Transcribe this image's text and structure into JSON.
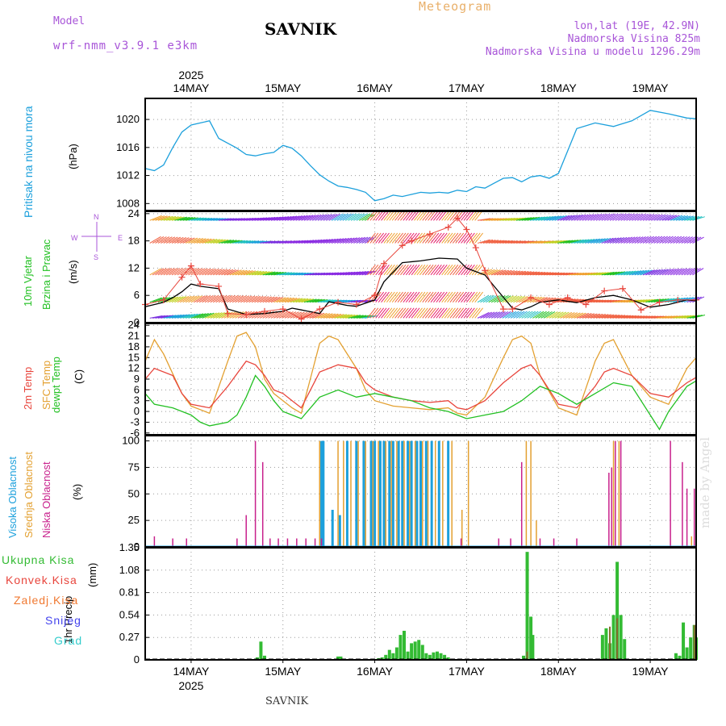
{
  "header": {
    "model_label": "Model",
    "model_name": "wrf-nmm_v3.9.1 e3km",
    "station": "SAVNIK",
    "product": "Meteogram",
    "coords": "lon,lat (19E, 42.9N)",
    "elevation": "Nadmorska Visina 825m",
    "model_elevation": "Nadmorska Visina u modelu 1296.29m",
    "watermark": "made by Angel",
    "footer_station": "SAVNIK"
  },
  "time_axis": {
    "year": "2025",
    "days": [
      "14MAY",
      "15MAY",
      "16MAY",
      "17MAY",
      "18MAY",
      "19MAY"
    ],
    "range_days": [
      -0.5,
      5.5
    ]
  },
  "colors": {
    "pressure": "#1ca0dc",
    "wind_speed": "#000000",
    "gust": "#e8453c",
    "temp2m": "#e8453c",
    "sfc": "#e3a030",
    "dewpt": "#22c022",
    "cloud_high": "#1ca0dc",
    "cloud_mid": "#e3a030",
    "cloud_low": "#c8208c",
    "precip_total": "#33bb33",
    "precip_conv": "#e8453c",
    "precip_frozen": "#f07830",
    "snow": "#4444ee",
    "graupel": "#33cccc",
    "wind_dir": "#a855d8"
  },
  "chart_data": [
    {
      "type": "line",
      "name": "pressure",
      "ylabel_name": "Pritisak na nivou mora",
      "ylabel_unit": "(hPa)",
      "ylim": [
        1007,
        1023
      ],
      "yticks": [
        1008,
        1012,
        1016,
        1020
      ],
      "series": [
        {
          "name": "MSLP",
          "x": [
            -0.5,
            -0.4,
            -0.3,
            -0.2,
            -0.1,
            0.0,
            0.1,
            0.2,
            0.3,
            0.4,
            0.5,
            0.6,
            0.7,
            0.8,
            0.9,
            1.0,
            1.1,
            1.2,
            1.3,
            1.4,
            1.5,
            1.6,
            1.7,
            1.8,
            1.9,
            2.0,
            2.1,
            2.2,
            2.3,
            2.4,
            2.5,
            2.6,
            2.7,
            2.8,
            2.9,
            3.0,
            3.1,
            3.2,
            3.3,
            3.4,
            3.5,
            3.6,
            3.7,
            3.8,
            3.9,
            4.0,
            4.2,
            4.4,
            4.6,
            4.8,
            5.0,
            5.2,
            5.4,
            5.5
          ],
          "values": [
            1013,
            1012.7,
            1013.5,
            1016,
            1018.2,
            1019.2,
            1019.5,
            1019.8,
            1017.3,
            1016.6,
            1015.9,
            1015,
            1014.8,
            1015.1,
            1015.3,
            1016.3,
            1015.9,
            1014.8,
            1013.4,
            1012.1,
            1011.2,
            1010.5,
            1010.3,
            1010.0,
            1009.6,
            1008.4,
            1008.7,
            1009.2,
            1009.0,
            1009.3,
            1009.6,
            1009.5,
            1009.6,
            1009.5,
            1009.9,
            1009.7,
            1010.4,
            1010.2,
            1010.9,
            1011.6,
            1011.7,
            1011.1,
            1011.8,
            1012.0,
            1011.6,
            1012.3,
            1018.7,
            1019.5,
            1019.0,
            1019.8,
            1021.3,
            1020.8,
            1020.2,
            1020.1
          ]
        }
      ]
    },
    {
      "type": "line",
      "name": "wind",
      "ylabel_name": "10m Vjetar",
      "ylabel_name2": "Brzina i Pravac",
      "ylabel_unit": "(m/s)",
      "legend_compass": [
        "W",
        "E",
        "N",
        "S"
      ],
      "ylim": [
        0,
        24.5
      ],
      "yticks": [
        0,
        6,
        12,
        18,
        24
      ],
      "series": [
        {
          "name": "speed",
          "x": [
            -0.5,
            -0.3,
            -0.2,
            -0.1,
            0.0,
            0.1,
            0.3,
            0.4,
            0.6,
            0.8,
            1.0,
            1.1,
            1.2,
            1.4,
            1.5,
            1.6,
            1.7,
            1.8,
            2.0,
            2.1,
            2.3,
            2.5,
            2.7,
            2.9,
            3.0,
            3.2,
            3.3,
            3.5,
            3.6,
            3.7,
            3.8,
            4.0,
            4.2,
            4.4,
            4.6,
            4.8,
            5.0,
            5.2,
            5.4,
            5.5
          ],
          "values": [
            3.5,
            4.5,
            5.5,
            6.8,
            8.5,
            8.0,
            7.5,
            3.0,
            1.8,
            2.0,
            2.5,
            3.2,
            2.8,
            2.0,
            4.6,
            4.2,
            3.8,
            3.6,
            5.0,
            9.0,
            13.2,
            13.6,
            14.2,
            14.0,
            12.0,
            10.5,
            8.0,
            3.2,
            2.8,
            3.5,
            4.5,
            5.0,
            4.4,
            5.5,
            6.0,
            5.0,
            3.4,
            4.0,
            5.0,
            4.8
          ]
        },
        {
          "name": "gust",
          "x": [
            -0.5,
            -0.3,
            -0.1,
            0.0,
            0.1,
            0.3,
            0.4,
            0.6,
            0.8,
            1.0,
            1.2,
            1.4,
            1.6,
            1.8,
            2.0,
            2.1,
            2.3,
            2.4,
            2.6,
            2.8,
            2.9,
            3.0,
            3.1,
            3.2,
            3.4,
            3.5,
            3.7,
            3.9,
            4.1,
            4.3,
            4.5,
            4.7,
            4.9,
            5.1,
            5.3,
            5.5
          ],
          "values": [
            4.0,
            5.0,
            10.0,
            12.5,
            8.5,
            8.0,
            2.0,
            1.8,
            2.5,
            3.0,
            0.8,
            3.0,
            4.5,
            4.0,
            6.0,
            13.0,
            17.0,
            18.0,
            19.5,
            21.0,
            23.0,
            20.5,
            16.5,
            11.5,
            3.0,
            3.0,
            5.5,
            4.0,
            5.5,
            4.0,
            7.0,
            7.5,
            2.8,
            4.5,
            5.0,
            5.0
          ]
        },
        {
          "name": "direction",
          "x": [],
          "values": []
        }
      ]
    },
    {
      "type": "line",
      "name": "temperature",
      "ylabel_name": "2m Temp",
      "ylabel_name2": "SFC Temp",
      "ylabel_name3": "dewpt Temp",
      "ylabel_unit": "(C)",
      "ylim": [
        -6.5,
        24.5
      ],
      "yticks": [
        -6,
        -3,
        0,
        3,
        6,
        9,
        12,
        15,
        18,
        21,
        24
      ],
      "series": [
        {
          "name": "2m Temp",
          "x": [
            -0.5,
            -0.4,
            -0.2,
            -0.1,
            0.0,
            0.1,
            0.2,
            0.4,
            0.6,
            0.7,
            0.8,
            0.9,
            1.0,
            1.1,
            1.2,
            1.4,
            1.6,
            1.8,
            1.9,
            2.0,
            2.2,
            2.4,
            2.6,
            2.8,
            2.9,
            3.0,
            3.2,
            3.4,
            3.6,
            3.7,
            3.8,
            4.0,
            4.2,
            4.4,
            4.5,
            4.6,
            4.8,
            5.0,
            5.2,
            5.4,
            5.5
          ],
          "values": [
            9,
            12,
            10,
            5,
            2,
            1.5,
            1,
            7,
            14,
            13,
            10,
            6,
            5,
            3,
            1,
            11,
            13,
            12,
            8,
            6,
            4,
            3,
            2.5,
            3,
            1,
            0.5,
            3,
            8,
            12,
            13,
            10,
            2,
            1,
            7,
            11,
            12,
            10,
            5,
            4,
            8,
            9.5
          ]
        },
        {
          "name": "SFC Temp",
          "x": [
            -0.5,
            -0.4,
            -0.3,
            -0.1,
            0.0,
            0.1,
            0.2,
            0.4,
            0.5,
            0.6,
            0.7,
            0.8,
            0.9,
            1.0,
            1.1,
            1.2,
            1.4,
            1.5,
            1.6,
            1.8,
            1.9,
            2.0,
            2.2,
            2.4,
            2.6,
            2.8,
            2.9,
            3.0,
            3.2,
            3.4,
            3.5,
            3.6,
            3.7,
            3.8,
            4.0,
            4.2,
            4.4,
            4.5,
            4.6,
            4.7,
            4.8,
            5.0,
            5.2,
            5.4,
            5.5
          ],
          "values": [
            14,
            20,
            16,
            5,
            1.5,
            0.5,
            -0.5,
            14,
            21,
            22,
            18,
            9,
            5,
            3,
            1,
            -0.5,
            19,
            21,
            20,
            12,
            6,
            3,
            1.5,
            1,
            0.5,
            1,
            -0.5,
            -1,
            4,
            15,
            20,
            21,
            19,
            10,
            1,
            -1,
            14,
            19,
            20,
            15,
            10,
            4,
            2,
            12,
            15
          ]
        },
        {
          "name": "dewpt Temp",
          "x": [
            -0.5,
            -0.4,
            -0.2,
            0.0,
            0.1,
            0.2,
            0.4,
            0.5,
            0.6,
            0.7,
            0.8,
            0.9,
            1.0,
            1.1,
            1.2,
            1.4,
            1.6,
            1.8,
            2.0,
            2.2,
            2.4,
            2.6,
            2.8,
            3.0,
            3.2,
            3.4,
            3.6,
            3.8,
            4.0,
            4.2,
            4.4,
            4.6,
            4.8,
            5.0,
            5.1,
            5.2,
            5.4,
            5.5
          ],
          "values": [
            5,
            2,
            1,
            -1,
            -3,
            -4,
            -3,
            -1,
            4,
            10,
            7,
            3,
            0,
            -1,
            -2,
            4,
            6,
            4,
            5,
            4,
            3,
            1,
            0,
            -2,
            -1,
            0,
            3,
            7,
            5,
            2,
            5,
            8,
            7,
            -1,
            -5,
            0,
            7,
            8.5
          ]
        }
      ]
    },
    {
      "type": "bar",
      "name": "clouds",
      "ylabel_name": "Visoka Oblacnost",
      "ylabel_name2": "Srednja Oblacnost",
      "ylabel_name3": "Niska Oblacnost",
      "ylabel_unit": "(%)",
      "ylim": [
        0,
        105
      ],
      "yticks": [
        0,
        25,
        50,
        75,
        100
      ],
      "series": [
        {
          "name": "Visoka",
          "x": [
            1.42,
            1.44,
            1.54,
            1.62,
            1.7,
            1.8,
            1.88,
            1.96,
            2.0,
            2.06,
            2.1,
            2.16,
            2.2,
            2.26,
            2.3,
            2.36,
            2.4,
            2.46,
            2.5,
            2.56,
            2.62,
            2.7,
            2.8
          ],
          "values": [
            100,
            100,
            35,
            30,
            100,
            100,
            100,
            100,
            100,
            100,
            100,
            100,
            100,
            100,
            100,
            100,
            100,
            100,
            100,
            100,
            100,
            100,
            100
          ]
        },
        {
          "name": "Srednja",
          "x": [
            1.4,
            1.6,
            1.66,
            1.74,
            1.82,
            1.9,
            1.98,
            2.04,
            2.12,
            2.18,
            2.24,
            2.32,
            2.38,
            2.44,
            2.52,
            2.58,
            2.66,
            2.74,
            2.84,
            2.95,
            3.02,
            3.65,
            3.7,
            3.76,
            4.6,
            4.66,
            5.45,
            5.5
          ],
          "values": [
            100,
            100,
            100,
            100,
            100,
            100,
            100,
            100,
            100,
            100,
            100,
            100,
            100,
            100,
            100,
            100,
            100,
            100,
            100,
            35,
            100,
            100,
            100,
            25,
            100,
            100,
            10,
            10
          ]
        },
        {
          "name": "Niska",
          "x": [
            -0.4,
            -0.2,
            -0.05,
            0.5,
            0.6,
            0.7,
            0.78,
            0.86,
            0.95,
            1.05,
            1.15,
            1.25,
            1.35,
            1.42,
            2.94,
            3.35,
            3.48,
            3.6,
            3.8,
            3.95,
            4.2,
            4.55,
            4.58,
            4.62,
            4.68,
            5.22,
            5.35,
            5.4,
            5.48
          ],
          "values": [
            10,
            8,
            8,
            8,
            30,
            100,
            80,
            8,
            8,
            8,
            8,
            8,
            8,
            8,
            8,
            8,
            8,
            80,
            8,
            8,
            8,
            70,
            75,
            100,
            100,
            100,
            80,
            55,
            55
          ]
        }
      ]
    },
    {
      "type": "bar",
      "name": "precip",
      "ylabel_name": "1hr Precip",
      "ylabel_unit": "(mm)",
      "legend": [
        "Ukupna Kisa",
        "Konvek.Kisa",
        "Zaledj.Kisa",
        "Snijeg",
        "Grad"
      ],
      "ylim": [
        0,
        1.35
      ],
      "yticks": [
        0,
        0.27,
        0.54,
        0.81,
        1.08,
        1.35
      ],
      "series": [
        {
          "name": "Ukupna Kisa",
          "x": [
            0.72,
            0.76,
            0.8,
            1.6,
            1.63,
            2.04,
            2.08,
            2.12,
            2.16,
            2.2,
            2.24,
            2.28,
            2.32,
            2.36,
            2.4,
            2.44,
            2.48,
            2.52,
            2.56,
            2.6,
            2.64,
            2.68,
            2.72,
            2.76,
            2.8,
            3.62,
            3.66,
            3.7,
            3.72,
            4.48,
            4.52,
            4.56,
            4.6,
            4.64,
            4.68,
            4.72,
            5.28,
            5.32,
            5.36,
            5.4,
            5.44,
            5.48,
            5.5
          ],
          "values": [
            0.03,
            0.22,
            0.05,
            0.04,
            0.04,
            0.02,
            0.03,
            0.06,
            0.12,
            0.08,
            0.15,
            0.3,
            0.35,
            0.1,
            0.2,
            0.22,
            0.24,
            0.18,
            0.08,
            0.06,
            0.09,
            0.1,
            0.08,
            0.06,
            0.03,
            0.05,
            1.3,
            0.52,
            0.3,
            0.3,
            0.38,
            0.2,
            0.54,
            1.18,
            0.54,
            0.25,
            0.08,
            0.05,
            0.45,
            0.15,
            0.27,
            0.42,
            0.27
          ]
        },
        {
          "name": "Konvek.Kisa",
          "x": [
            3.66,
            4.56,
            4.64,
            5.48,
            5.5
          ],
          "values": [
            0.1,
            0.4,
            0.5,
            0.42,
            0.27
          ]
        },
        {
          "name": "Zaledj.Kisa",
          "x": [],
          "values": []
        },
        {
          "name": "Snijeg",
          "x": [],
          "values": []
        },
        {
          "name": "Grad",
          "x": [],
          "values": []
        }
      ]
    }
  ]
}
